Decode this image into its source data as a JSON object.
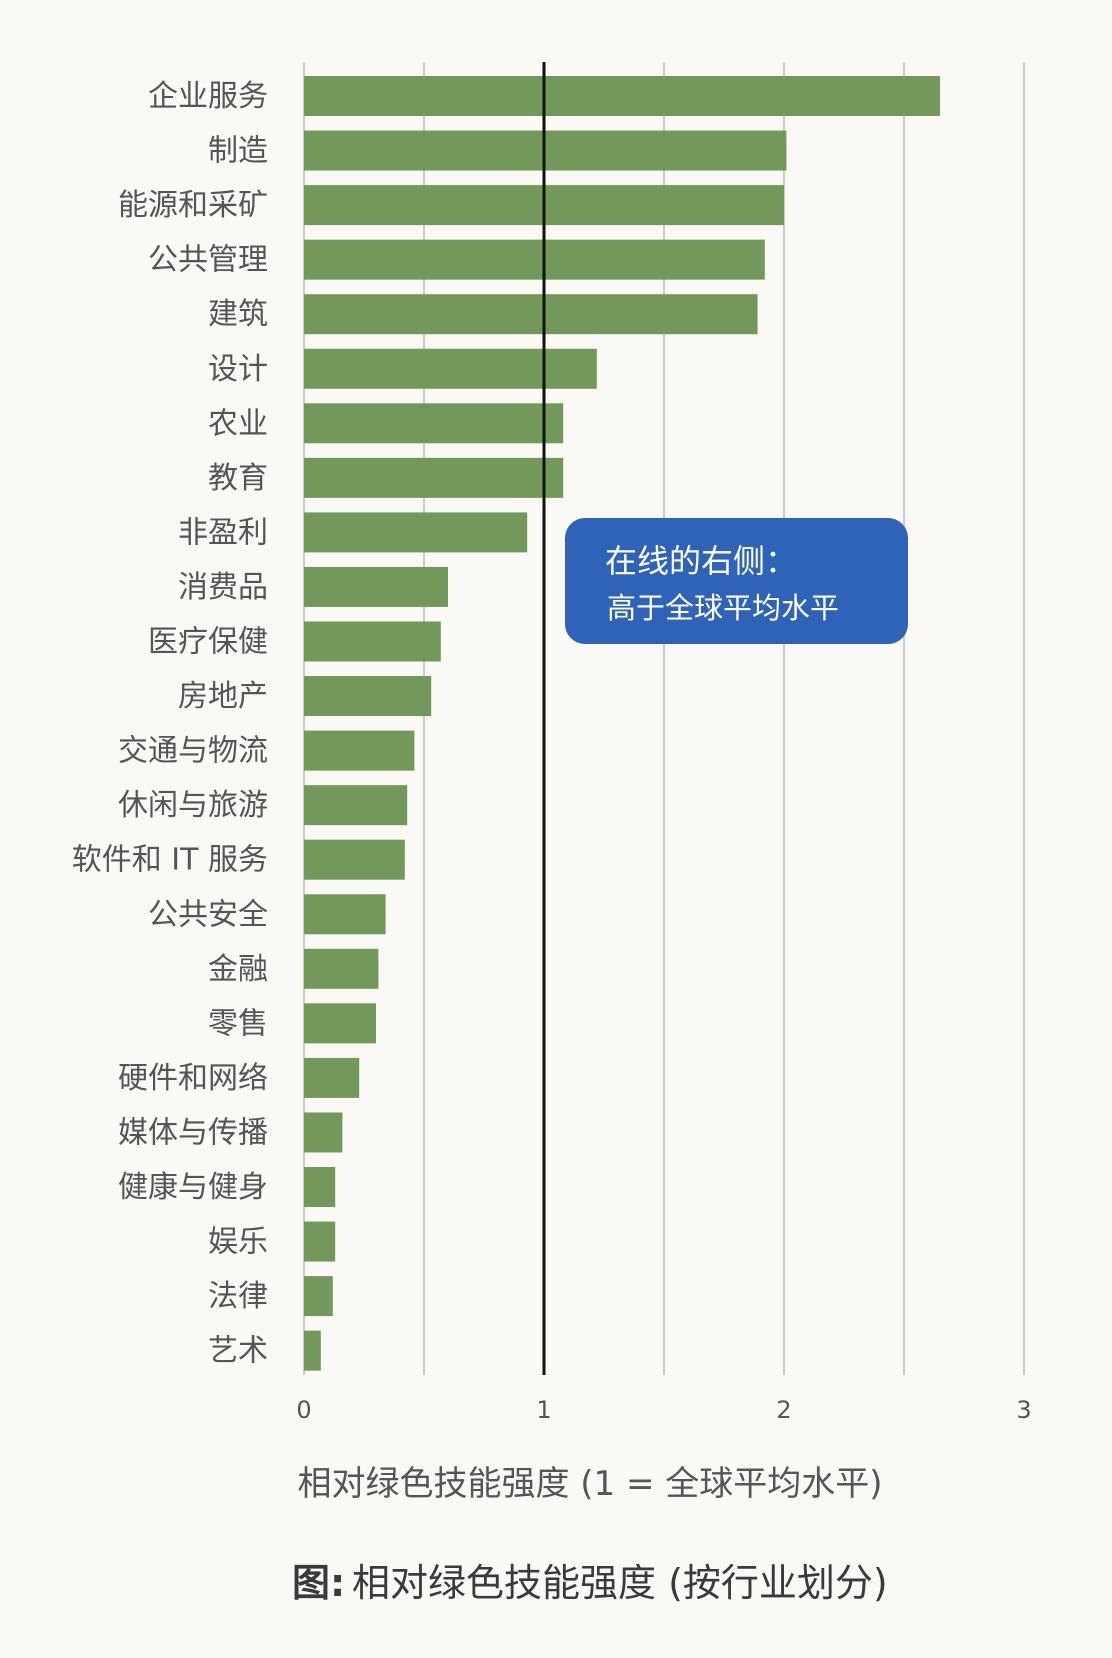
{
  "chart_data": {
    "type": "bar",
    "orientation": "horizontal",
    "categories": [
      "企业服务",
      "制造",
      "能源和采矿",
      "公共管理",
      "建筑",
      "设计",
      "农业",
      "教育",
      "非盈利",
      "消费品",
      "医疗保健",
      "房地产",
      "交通与物流",
      "休闲与旅游",
      "软件和 IT 服务",
      "公共安全",
      "金融",
      "零售",
      "硬件和网络",
      "媒体与传播",
      "健康与健身",
      "娱乐",
      "法律",
      "艺术"
    ],
    "values": [
      2.65,
      2.01,
      2.0,
      1.92,
      1.89,
      1.22,
      1.08,
      1.08,
      0.93,
      0.6,
      0.57,
      0.53,
      0.46,
      0.43,
      0.42,
      0.34,
      0.31,
      0.3,
      0.23,
      0.16,
      0.13,
      0.13,
      0.12,
      0.07
    ],
    "xlabel": "相对绿色技能强度 (1 = 全球平均水平)",
    "xlim": [
      0,
      3
    ],
    "xticks": [
      "0",
      "1",
      "2",
      "3"
    ],
    "grid": true,
    "reference_line": 1,
    "bar_color": "#72985a",
    "annotation": {
      "title": "在线的右侧：",
      "text": "高于全球平均水平",
      "color": "#2f63b8"
    }
  },
  "caption": {
    "prefix": "图:",
    "text": "相对绿色技能强度 (按行业划分)"
  }
}
